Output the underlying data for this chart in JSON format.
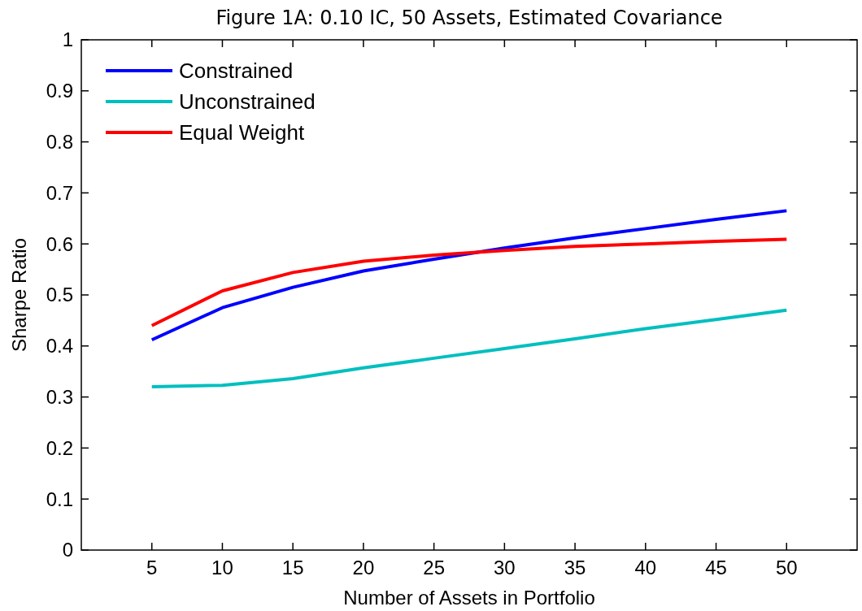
{
  "chart_data": {
    "type": "line",
    "title": "Figure 1A: 0.10 IC, 50 Assets, Estimated Covariance",
    "xlabel": "Number of Assets in Portfolio",
    "ylabel": "Sharpe Ratio",
    "x": [
      5,
      10,
      15,
      20,
      25,
      30,
      35,
      40,
      45,
      50
    ],
    "series": [
      {
        "name": "Constrained",
        "color": "#0000ff",
        "values": [
          0.412,
          0.475,
          0.515,
          0.547,
          0.57,
          0.592,
          0.612,
          0.63,
          0.648,
          0.665
        ]
      },
      {
        "name": "Unconstrained",
        "color": "#00bfbf",
        "values": [
          0.32,
          0.323,
          0.336,
          0.357,
          0.376,
          0.395,
          0.414,
          0.434,
          0.452,
          0.47
        ]
      },
      {
        "name": "Equal Weight",
        "color": "#ff0000",
        "values": [
          0.44,
          0.508,
          0.544,
          0.566,
          0.578,
          0.587,
          0.595,
          0.6,
          0.605,
          0.609
        ]
      }
    ],
    "xlim": [
      0,
      55
    ],
    "xticks": [
      5,
      10,
      15,
      20,
      25,
      30,
      35,
      40,
      45,
      50
    ],
    "ylim": [
      0,
      1
    ],
    "yticks": [
      0,
      0.1,
      0.2,
      0.3,
      0.4,
      0.5,
      0.6,
      0.7,
      0.8,
      0.9,
      1
    ],
    "grid": false,
    "legend": "top left",
    "line_style": "solid",
    "marker": "none"
  }
}
